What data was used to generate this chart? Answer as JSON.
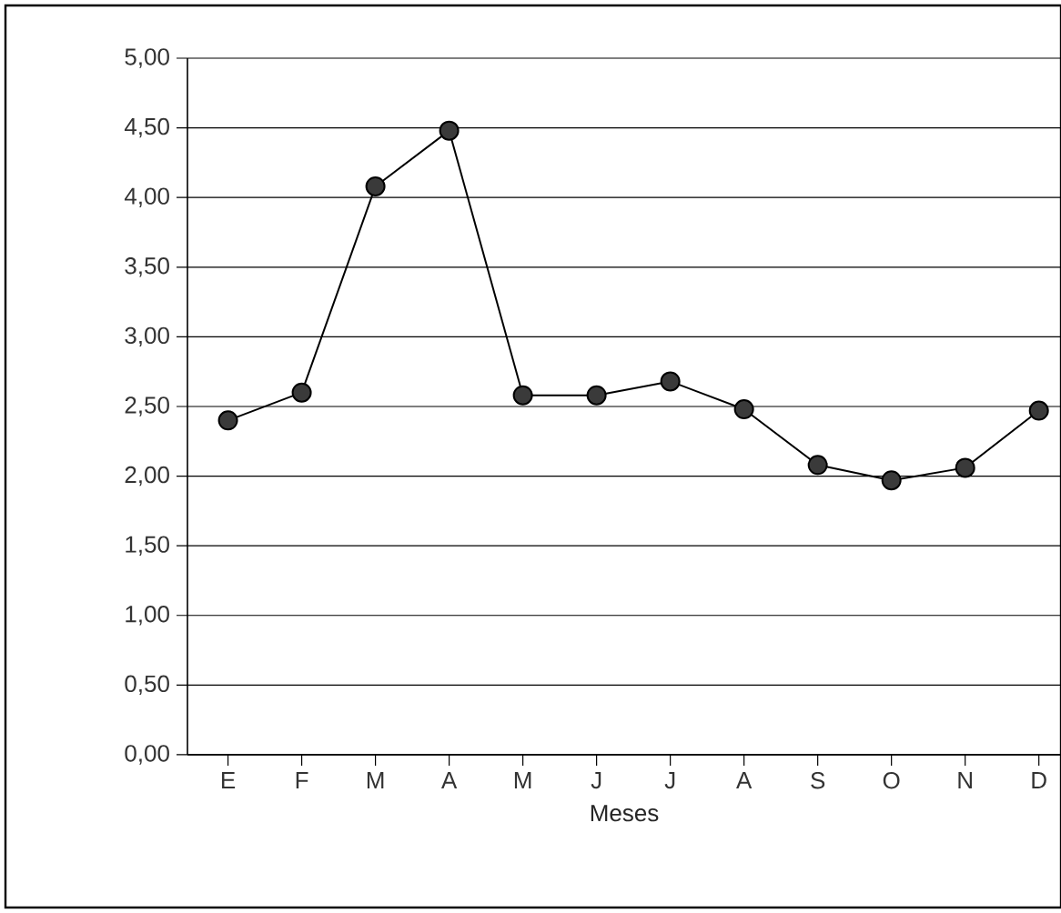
{
  "chart_data": {
    "type": "line",
    "xlabel": "Meses",
    "categories": [
      "E",
      "F",
      "M",
      "A",
      "M",
      "J",
      "J",
      "A",
      "S",
      "O",
      "N",
      "D"
    ],
    "values": [
      2.4,
      2.6,
      4.08,
      4.48,
      2.58,
      2.58,
      2.68,
      2.48,
      2.08,
      1.97,
      2.06,
      2.47
    ],
    "color": "#3a3a3a",
    "ylim": [
      0,
      5
    ],
    "yticks": [
      {
        "value": 0,
        "label": "0,00"
      },
      {
        "value": 0.5,
        "label": "0,50"
      },
      {
        "value": 1,
        "label": "1,00"
      },
      {
        "value": 1.5,
        "label": "1,50"
      },
      {
        "value": 2,
        "label": "2,00"
      },
      {
        "value": 2.5,
        "label": "2,50"
      },
      {
        "value": 3,
        "label": "3,00"
      },
      {
        "value": 3.5,
        "label": "3,50"
      },
      {
        "value": 4,
        "label": "4,00"
      },
      {
        "value": 4.5,
        "label": "4,50"
      },
      {
        "value": 5,
        "label": "5,00"
      }
    ],
    "grid": "y",
    "marker": "circle",
    "line_style": "solid"
  }
}
